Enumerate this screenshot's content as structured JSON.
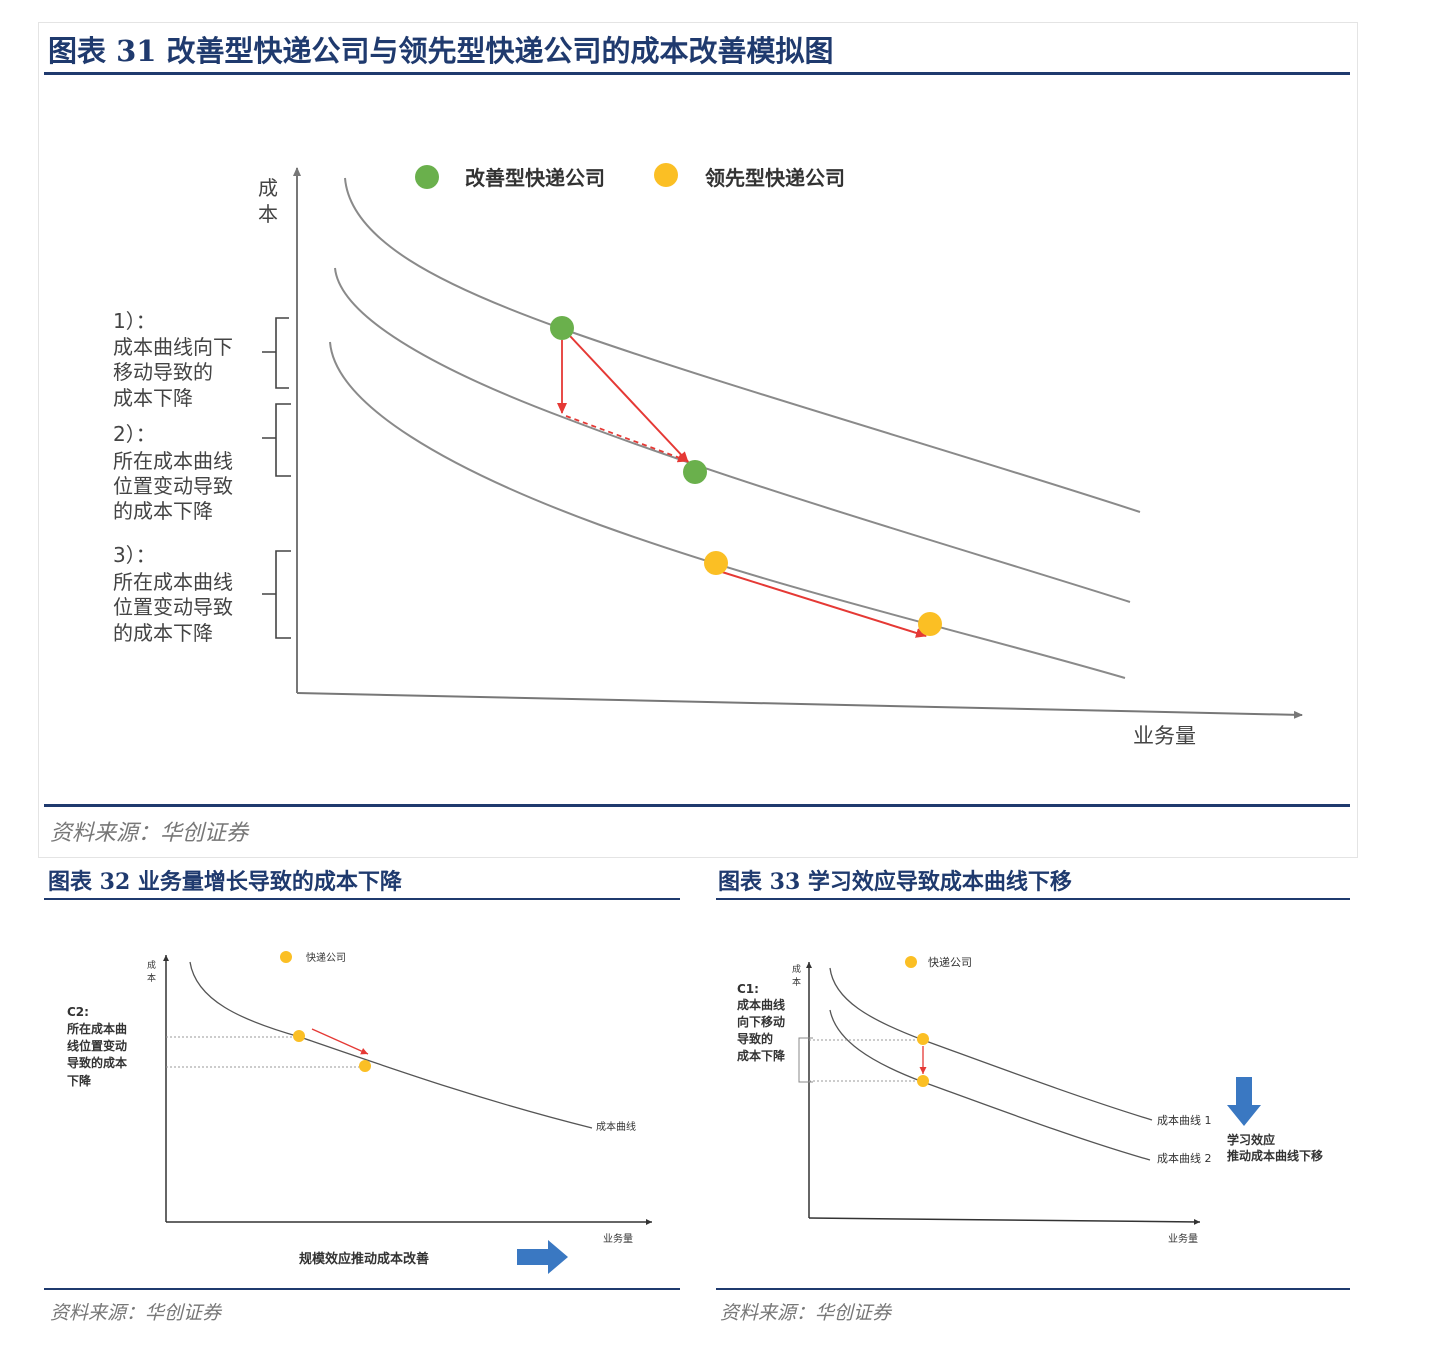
{
  "fig31": {
    "title": "图表 31 改善型快递公司与领先型快递公司的成本改善模拟图",
    "legend": [
      {
        "label": "改善型快递公司",
        "color": "#6ab04c"
      },
      {
        "label": "领先型快递公司",
        "color": "#fbbf24"
      }
    ],
    "y_label_lines": [
      "成",
      "本"
    ],
    "x_label": "业务量",
    "annotations": [
      {
        "lines": [
          "1）：",
          "成本曲线向下",
          "移动导致的",
          "成本下降"
        ]
      },
      {
        "lines": [
          "2）：",
          "所在成本曲线",
          "位置变动导致",
          "的成本下降"
        ]
      },
      {
        "lines": [
          "3）：",
          "所在成本曲线",
          "位置变动导致",
          "的成本下降"
        ]
      }
    ],
    "source": "资料来源：华创证券"
  },
  "fig32": {
    "title": "图表 32 业务量增长导致的成本下降",
    "legend_label": "快递公司",
    "y_label_lines": [
      "成",
      "本"
    ],
    "x_label": "业务量",
    "curve_label": "成本曲线",
    "annotation_lines": [
      "C2:",
      "所在成本曲",
      "线位置变动",
      "导致的成本",
      "下降"
    ],
    "bottom_label": "规模效应推动成本改善",
    "source": "资料来源：华创证券"
  },
  "fig33": {
    "title": "图表 33 学习效应导致成本曲线下移",
    "legend_label": "快递公司",
    "y_label_lines": [
      "成",
      "本"
    ],
    "x_label": "业务量",
    "curve1_label": "成本曲线 1",
    "curve2_label": "成本曲线 2",
    "annotation_lines": [
      "C1:",
      "成本曲线",
      "向下移动",
      "导致的",
      "成本下降"
    ],
    "side_label_lines": [
      "学习效应",
      "推动成本曲线下移"
    ],
    "source": "资料来源：华创证券"
  },
  "colors": {
    "navy": "#1f3a6e",
    "green": "#6ab04c",
    "orange": "#fbbf24",
    "red": "#e53935",
    "arrow_blue": "#3a78c2",
    "curve": "#8a8a8a"
  }
}
